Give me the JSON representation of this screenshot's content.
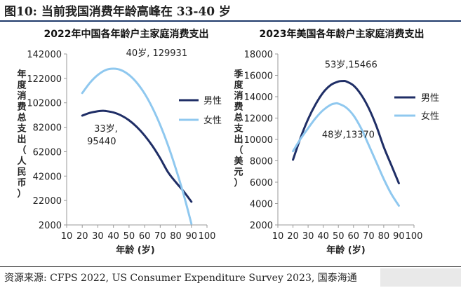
{
  "figure": {
    "title": "图10:  当前我国消费年龄高峰在 33-40 岁",
    "source": "资源来源: CFPS 2022, US Consumer Expenditure Survey 2023, 国泰海通"
  },
  "chart_data": [
    {
      "type": "line",
      "title": "2022年中国各年龄户主家庭消费支出",
      "xlabel": "年龄 (岁)",
      "ylabel": "年度消费总支出（人民币）",
      "xlim": [
        10,
        100
      ],
      "ylim": [
        2000,
        142000
      ],
      "xticks": [
        10,
        20,
        30,
        40,
        50,
        60,
        70,
        80,
        90,
        100
      ],
      "yticks": [
        2000,
        22000,
        42000,
        62000,
        82000,
        102000,
        122000,
        142000
      ],
      "grid": false,
      "legend": "right",
      "series": [
        {
          "name": "男性",
          "color": "#1f2e66",
          "x": [
            20,
            25,
            30,
            33,
            35,
            40,
            45,
            50,
            55,
            60,
            65,
            70,
            75,
            80,
            85,
            90
          ],
          "y": [
            91500,
            93800,
            95100,
            95440,
            95300,
            94100,
            91600,
            87700,
            82200,
            75200,
            66700,
            56600,
            45200,
            37000,
            29500,
            21000
          ]
        },
        {
          "name": "女性",
          "color": "#8fc8ef",
          "x": [
            20,
            25,
            30,
            35,
            40,
            45,
            50,
            55,
            60,
            65,
            70,
            75,
            80,
            85,
            90
          ],
          "y": [
            110000,
            118500,
            124800,
            128800,
            129931,
            128700,
            124800,
            118400,
            109500,
            97900,
            83800,
            67200,
            48100,
            27000,
            3000
          ]
        }
      ],
      "annotations": [
        {
          "text": "40岁, 129931",
          "x": 40,
          "y": 129931
        },
        {
          "text": "33岁,",
          "x": 33,
          "y": 95440
        },
        {
          "text": "95440",
          "x": 33,
          "y": 95440
        }
      ]
    },
    {
      "type": "line",
      "title": "2023年美国各年龄户主家庭消费支出",
      "xlabel": "年龄 (岁)",
      "ylabel": "季度消费总支出（美元）",
      "xlim": [
        10,
        100
      ],
      "ylim": [
        2000,
        18000
      ],
      "xticks": [
        10,
        20,
        30,
        40,
        50,
        60,
        70,
        80,
        90,
        100
      ],
      "yticks": [
        2000,
        4000,
        6000,
        8000,
        10000,
        12000,
        14000,
        16000,
        18000
      ],
      "grid": false,
      "legend": "right",
      "series": [
        {
          "name": "男性",
          "color": "#1f2e66",
          "x": [
            20,
            25,
            30,
            35,
            40,
            45,
            50,
            53,
            55,
            60,
            65,
            70,
            75,
            80,
            85,
            90
          ],
          "y": [
            8100,
            10150,
            11900,
            13300,
            14400,
            15100,
            15420,
            15466,
            15440,
            15050,
            14200,
            12950,
            11300,
            9300,
            7600,
            5900
          ]
        },
        {
          "name": "女性",
          "color": "#8fc8ef",
          "x": [
            20,
            25,
            30,
            35,
            40,
            45,
            48,
            50,
            55,
            60,
            65,
            70,
            75,
            80,
            85,
            90
          ],
          "y": [
            8900,
            10050,
            11050,
            12000,
            12750,
            13250,
            13370,
            13350,
            13000,
            12250,
            11050,
            9500,
            7900,
            6300,
            4900,
            3800
          ]
        }
      ],
      "annotations": [
        {
          "text": "53岁,15466",
          "x": 53,
          "y": 15466
        },
        {
          "text": "48岁,13370",
          "x": 48,
          "y": 13370
        }
      ]
    }
  ]
}
